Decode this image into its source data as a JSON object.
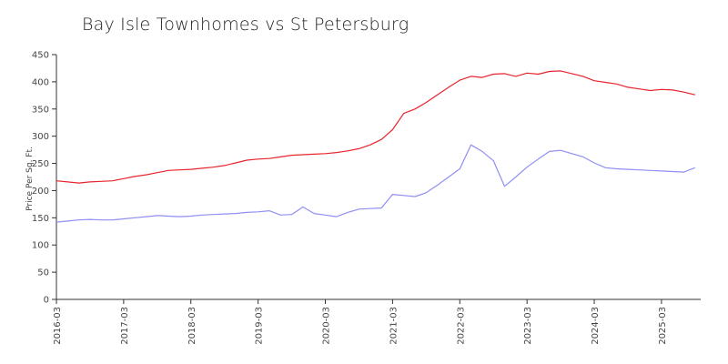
{
  "chart_data": {
    "type": "line",
    "title": "Bay Isle Townhomes vs St Petersburg",
    "xlabel": "",
    "ylabel": "Price Per Sq. Ft.",
    "ylim": [
      0,
      450
    ],
    "y_ticks": [
      0,
      50,
      100,
      150,
      200,
      250,
      300,
      350,
      400,
      450
    ],
    "x_ticks": [
      "2016-03",
      "2017-03",
      "2018-03",
      "2019-03",
      "2020-03",
      "2021-03",
      "2022-03",
      "2023-03",
      "2024-03",
      "2025-03"
    ],
    "x": [
      "2016-03",
      "2016-05",
      "2016-07",
      "2016-09",
      "2016-11",
      "2017-01",
      "2017-03",
      "2017-05",
      "2017-07",
      "2017-09",
      "2017-11",
      "2018-01",
      "2018-03",
      "2018-05",
      "2018-07",
      "2018-09",
      "2018-11",
      "2019-01",
      "2019-03",
      "2019-05",
      "2019-07",
      "2019-09",
      "2019-11",
      "2020-01",
      "2020-03",
      "2020-05",
      "2020-07",
      "2020-09",
      "2020-11",
      "2021-01",
      "2021-03",
      "2021-05",
      "2021-07",
      "2021-09",
      "2021-11",
      "2022-01",
      "2022-03",
      "2022-05",
      "2022-07",
      "2022-09",
      "2022-11",
      "2023-01",
      "2023-03",
      "2023-05",
      "2023-07",
      "2023-09",
      "2023-11",
      "2024-01",
      "2024-03",
      "2024-05",
      "2024-07",
      "2024-09",
      "2024-11",
      "2025-01",
      "2025-03",
      "2025-05",
      "2025-07",
      "2025-09"
    ],
    "series": [
      {
        "color": "#e8242c",
        "values": [
          218,
          216,
          214,
          216,
          217,
          218,
          222,
          226,
          229,
          233,
          237,
          238,
          239,
          241,
          243,
          246,
          251,
          256,
          258,
          259,
          262,
          265,
          266,
          267,
          268,
          270,
          273,
          277,
          284,
          294,
          312,
          342,
          350,
          362,
          376,
          390,
          403,
          410,
          408,
          414,
          415,
          410,
          416,
          414,
          419,
          420,
          415,
          410,
          402,
          399,
          396,
          390,
          387,
          384,
          386,
          385,
          381,
          376
        ]
      },
      {
        "color": "#8f8ff5",
        "values": [
          142,
          144,
          146,
          147,
          146,
          146,
          148,
          150,
          152,
          154,
          153,
          152,
          153,
          155,
          156,
          157,
          158,
          160,
          161,
          163,
          155,
          156,
          170,
          158,
          155,
          152,
          160,
          166,
          167,
          168,
          193,
          191,
          189,
          196,
          210,
          225,
          240,
          284,
          272,
          255,
          208,
          225,
          243,
          258,
          272,
          274,
          268,
          262,
          251,
          242,
          240,
          239,
          238,
          237,
          236,
          235,
          234,
          242
        ]
      }
    ]
  }
}
